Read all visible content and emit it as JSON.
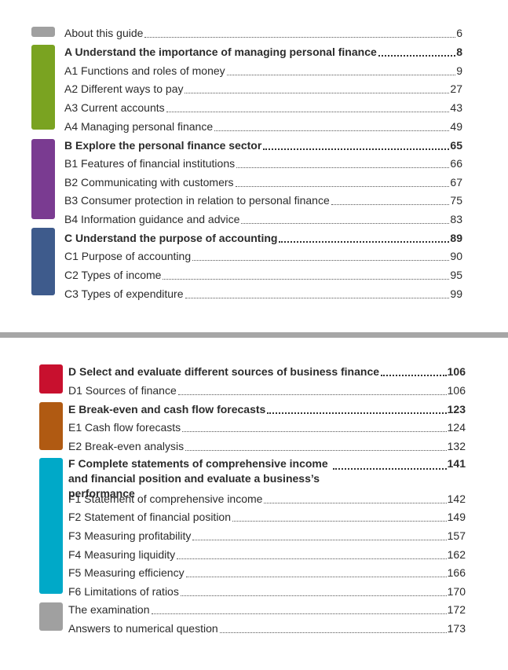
{
  "colors": {
    "grey": "#a0a0a0",
    "green": "#7aa321",
    "purple": "#7a3b91",
    "blue": "#3e5b8c",
    "red": "#c8102e",
    "brown": "#b05a12",
    "cyan": "#00a9c8",
    "divider": "#a6a6a6"
  },
  "top": {
    "about": {
      "label": "About this guide",
      "page": "6"
    },
    "a_title": {
      "label": "A Understand the importance of managing personal finance",
      "page": "8"
    },
    "a1": {
      "label": "A1 Functions and roles of money",
      "page": "9"
    },
    "a2": {
      "label": "A2 Different ways to pay",
      "page": "27"
    },
    "a3": {
      "label": "A3 Current accounts",
      "page": "43"
    },
    "a4": {
      "label": "A4 Managing personal finance",
      "page": "49"
    },
    "b_title": {
      "label": "B Explore the personal finance sector",
      "page": "65"
    },
    "b1": {
      "label": "B1 Features of financial institutions",
      "page": "66"
    },
    "b2": {
      "label": "B2 Communicating with customers",
      "page": "67"
    },
    "b3": {
      "label": "B3 Consumer protection in relation to personal finance",
      "page": "75"
    },
    "b4": {
      "label": "B4 Information guidance and advice",
      "page": "83"
    },
    "c_title": {
      "label": "C Understand the purpose of accounting",
      "page": "89"
    },
    "c1": {
      "label": "C1 Purpose of accounting",
      "page": "90"
    },
    "c2": {
      "label": "C2 Types of income",
      "page": "95"
    },
    "c3": {
      "label": "C3 Types of expenditure",
      "page": "99"
    }
  },
  "bottom": {
    "d_title": {
      "label": "D Select and evaluate different sources of business finance",
      "page": "106"
    },
    "d1": {
      "label": "D1 Sources of finance",
      "page": "106"
    },
    "e_title": {
      "label": "E Break-even and cash flow forecasts",
      "page": "123"
    },
    "e1": {
      "label": "E1 Cash flow forecasts",
      "page": "124"
    },
    "e2": {
      "label": "E2 Break-even analysis",
      "page": "132"
    },
    "f_title": {
      "label": "F Complete statements of comprehensive income and financial position and evaluate a business’s performance",
      "page": "141"
    },
    "f1": {
      "label": "F1 Statement of comprehensive income",
      "page": "142"
    },
    "f2": {
      "label": "F2 Statement of financial position",
      "page": "149"
    },
    "f3": {
      "label": "F3 Measuring profitability",
      "page": "157"
    },
    "f4": {
      "label": "F4 Measuring liquidity",
      "page": "162"
    },
    "f5": {
      "label": "F5 Measuring efficiency",
      "page": "166"
    },
    "f6": {
      "label": "F6 Limitations of ratios",
      "page": "170"
    },
    "exam": {
      "label": "The examination",
      "page": "172"
    },
    "answers": {
      "label": "Answers to numerical question",
      "page": "173"
    }
  }
}
